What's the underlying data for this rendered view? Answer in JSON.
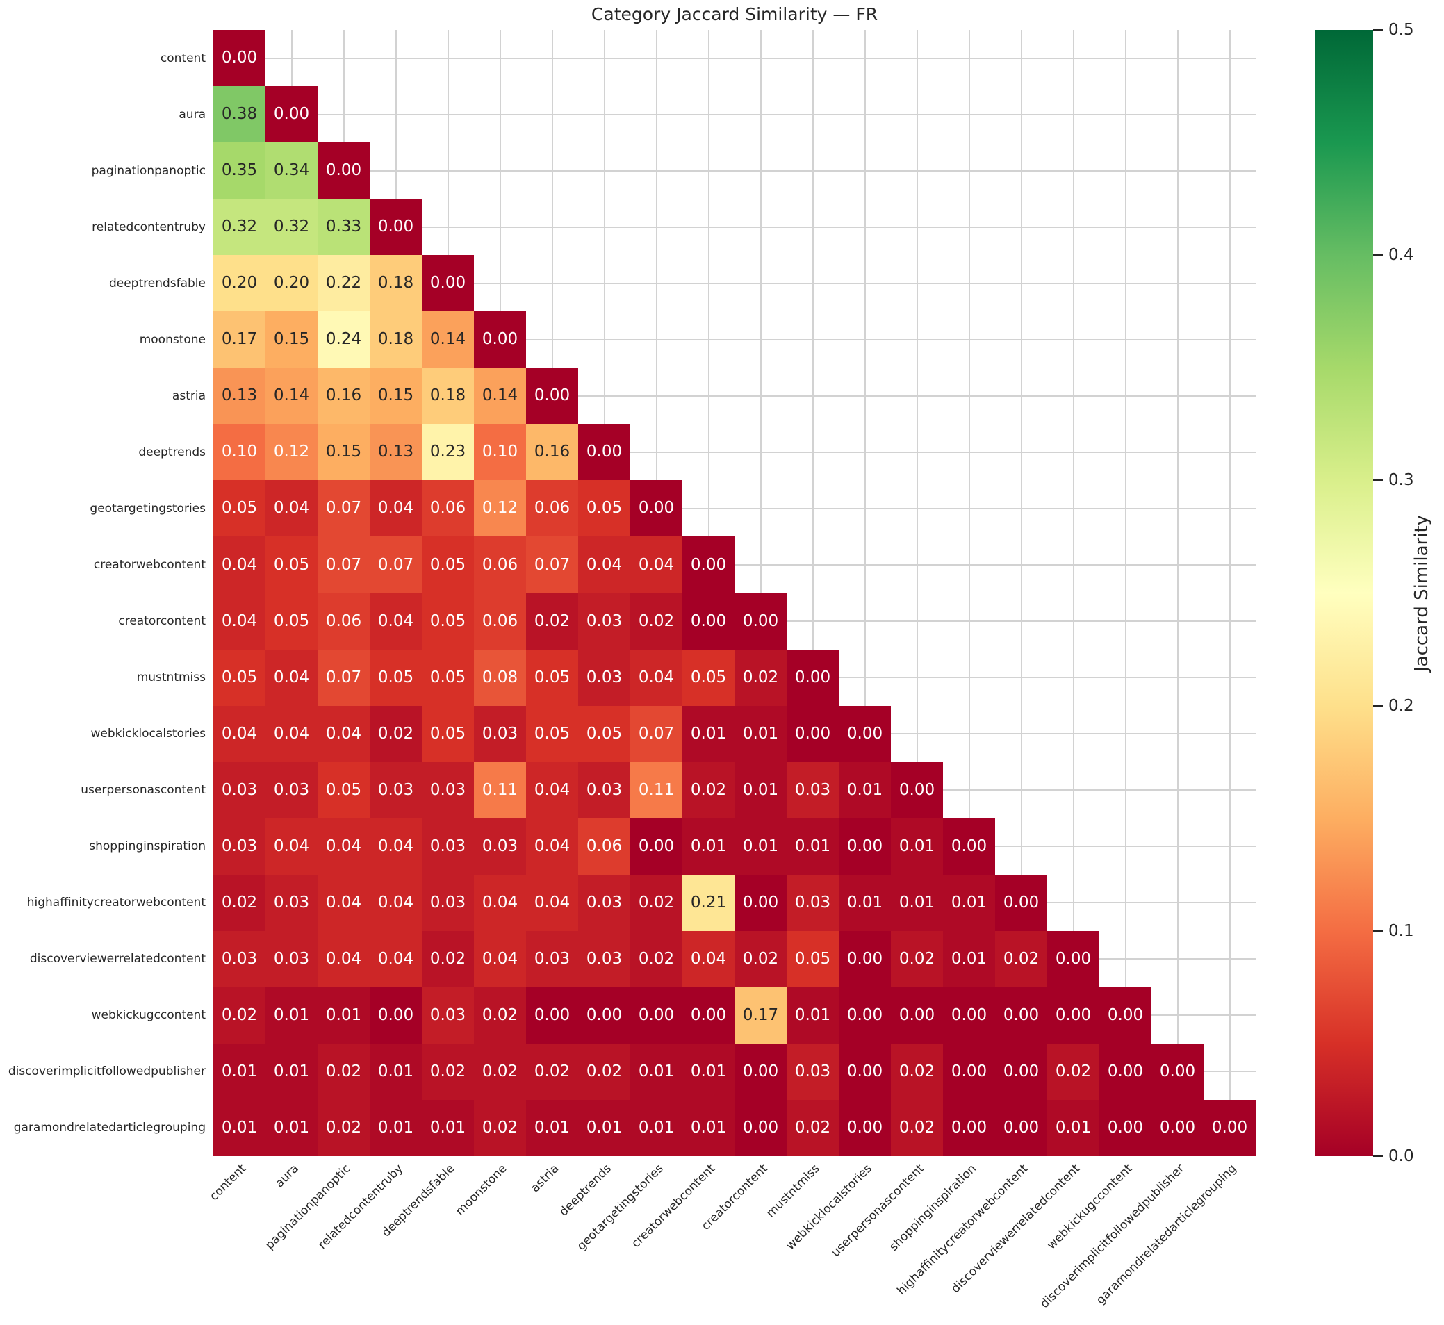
{
  "title": "Category Jaccard Similarity — FR",
  "chart_data": {
    "type": "heatmap",
    "title": "Category Jaccard Similarity — FR",
    "shape": "lower-triangle-with-diagonal",
    "categories": [
      "content",
      "aura",
      "paginationpanoptic",
      "relatedcontentruby",
      "deeptrendsfable",
      "moonstone",
      "astria",
      "deeptrends",
      "geotargetingstories",
      "creatorwebcontent",
      "creatorcontent",
      "mustntmiss",
      "webkicklocalstories",
      "userpersonascontent",
      "shoppinginspiration",
      "highaffinitycreatorwebcontent",
      "discoverviewerrelatedcontent",
      "webkickugccontent",
      "discoverimplicitfollowedpublisher",
      "garamondrelatedarticlegrouping"
    ],
    "matrix_lower_triangle": [
      [
        0.0
      ],
      [
        0.38,
        0.0
      ],
      [
        0.35,
        0.34,
        0.0
      ],
      [
        0.32,
        0.32,
        0.33,
        0.0
      ],
      [
        0.2,
        0.2,
        0.22,
        0.18,
        0.0
      ],
      [
        0.17,
        0.15,
        0.24,
        0.18,
        0.14,
        0.0
      ],
      [
        0.13,
        0.14,
        0.16,
        0.15,
        0.18,
        0.14,
        0.0
      ],
      [
        0.1,
        0.12,
        0.15,
        0.13,
        0.23,
        0.1,
        0.16,
        0.0
      ],
      [
        0.05,
        0.04,
        0.07,
        0.04,
        0.06,
        0.12,
        0.06,
        0.05,
        0.0
      ],
      [
        0.04,
        0.05,
        0.07,
        0.07,
        0.05,
        0.06,
        0.07,
        0.04,
        0.04,
        0.0
      ],
      [
        0.04,
        0.05,
        0.06,
        0.04,
        0.05,
        0.06,
        0.02,
        0.03,
        0.02,
        0.0,
        0.0
      ],
      [
        0.05,
        0.04,
        0.07,
        0.05,
        0.05,
        0.08,
        0.05,
        0.03,
        0.04,
        0.05,
        0.02,
        0.0
      ],
      [
        0.04,
        0.04,
        0.04,
        0.02,
        0.05,
        0.03,
        0.05,
        0.05,
        0.07,
        0.01,
        0.01,
        0.0,
        0.0
      ],
      [
        0.03,
        0.03,
        0.05,
        0.03,
        0.03,
        0.11,
        0.04,
        0.03,
        0.11,
        0.02,
        0.01,
        0.03,
        0.01,
        0.0
      ],
      [
        0.03,
        0.04,
        0.04,
        0.04,
        0.03,
        0.03,
        0.04,
        0.06,
        0.0,
        0.01,
        0.01,
        0.01,
        0.0,
        0.01,
        0.0
      ],
      [
        0.02,
        0.03,
        0.04,
        0.04,
        0.03,
        0.04,
        0.04,
        0.03,
        0.02,
        0.21,
        0.0,
        0.03,
        0.01,
        0.01,
        0.01,
        0.0
      ],
      [
        0.03,
        0.03,
        0.04,
        0.04,
        0.02,
        0.04,
        0.03,
        0.03,
        0.02,
        0.04,
        0.02,
        0.05,
        0.0,
        0.02,
        0.01,
        0.02,
        0.0
      ],
      [
        0.02,
        0.01,
        0.01,
        0.0,
        0.03,
        0.02,
        0.0,
        0.0,
        0.0,
        0.0,
        0.17,
        0.01,
        0.0,
        0.0,
        0.0,
        0.0,
        0.0,
        0.0
      ],
      [
        0.01,
        0.01,
        0.02,
        0.01,
        0.02,
        0.02,
        0.02,
        0.02,
        0.01,
        0.01,
        0.0,
        0.03,
        0.0,
        0.02,
        0.0,
        0.0,
        0.02,
        0.0,
        0.0
      ],
      [
        0.01,
        0.01,
        0.02,
        0.01,
        0.01,
        0.02,
        0.01,
        0.01,
        0.01,
        0.01,
        0.0,
        0.02,
        0.0,
        0.02,
        0.0,
        0.0,
        0.01,
        0.0,
        0.0,
        0.0
      ]
    ],
    "annotation_format": "two-decimal",
    "vmin": 0.0,
    "vmax": 0.5,
    "colormap": "RdYlGn",
    "grid": "on",
    "colorbar": {
      "label": "Jaccard Similarity",
      "ticks": [
        0.5,
        0.4,
        0.3,
        0.2,
        0.1,
        0.0
      ],
      "position": "right"
    }
  },
  "colors": {
    "background": "#ffffff",
    "grid": "#d2d2d2",
    "annotation_dark": "#262626",
    "annotation_light": "#ffffff",
    "colormap_anchors": [
      "#a50026",
      "#d73027",
      "#f46d43",
      "#fdae61",
      "#fee08b",
      "#ffffbf",
      "#d9ef8b",
      "#a6d96a",
      "#66bd63",
      "#1a9850",
      "#006837"
    ]
  }
}
